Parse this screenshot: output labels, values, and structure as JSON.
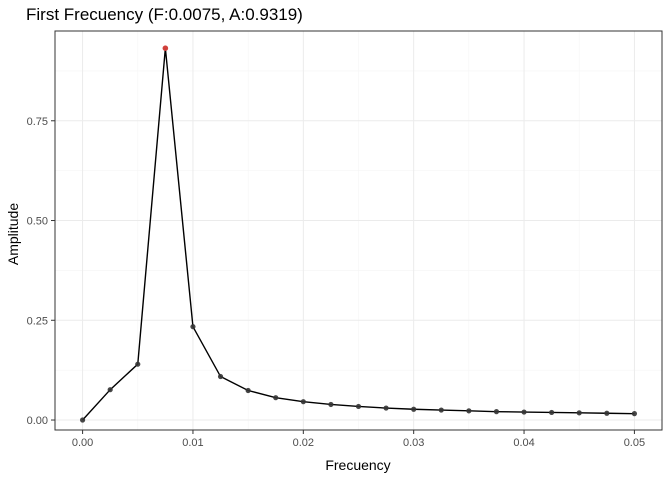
{
  "chart_data": {
    "type": "line",
    "title": "First Frecuency (F:0.0075, A:0.9319)",
    "xlabel": "Frecuency",
    "ylabel": "Amplitude",
    "xlim": [
      -0.0025,
      0.0525
    ],
    "ylim": [
      -0.025,
      0.975
    ],
    "x_ticks": [
      0.0,
      0.01,
      0.02,
      0.03,
      0.04,
      0.05
    ],
    "x_tick_labels": [
      "0.00",
      "0.01",
      "0.02",
      "0.03",
      "0.04",
      "0.05"
    ],
    "y_ticks": [
      0.0,
      0.25,
      0.5,
      0.75
    ],
    "y_tick_labels": [
      "0.00",
      "0.25",
      "0.50",
      "0.75"
    ],
    "grid": true,
    "series": [
      {
        "x": [
          0.0,
          0.0025,
          0.005,
          0.0075,
          0.01,
          0.0125,
          0.015,
          0.0175,
          0.02,
          0.0225,
          0.025,
          0.0275,
          0.03,
          0.0325,
          0.035,
          0.0375,
          0.04,
          0.0425,
          0.045,
          0.0475,
          0.05
        ],
        "y": [
          0.0,
          0.076,
          0.14,
          0.9319,
          0.234,
          0.109,
          0.074,
          0.056,
          0.046,
          0.039,
          0.034,
          0.03,
          0.027,
          0.025,
          0.023,
          0.021,
          0.02,
          0.019,
          0.018,
          0.017,
          0.016
        ],
        "line_color": "#000000",
        "point_color": "#333333"
      }
    ],
    "highlight_point": {
      "x": 0.0075,
      "y": 0.9319,
      "color": "#e8403a"
    },
    "colors": {
      "grid_major": "#ebebeb",
      "grid_minor": "#f5f5f5",
      "panel_border": "#333333",
      "tick": "#333333"
    }
  }
}
